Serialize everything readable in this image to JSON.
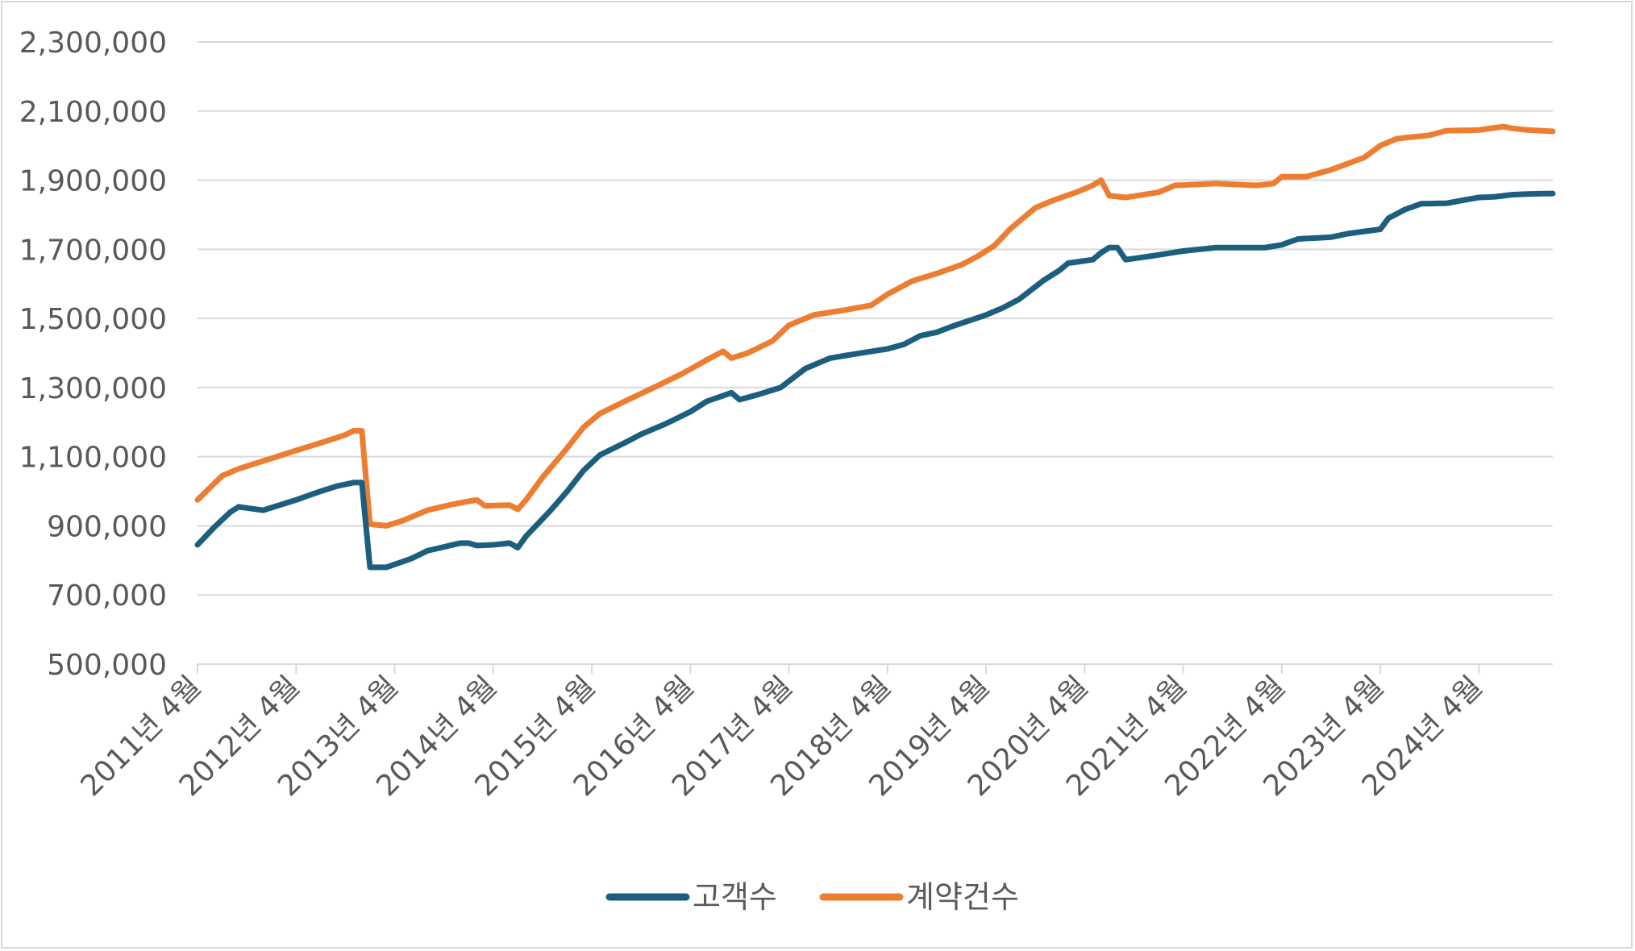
{
  "chart_data": {
    "type": "line",
    "title": "",
    "xlabel": "",
    "ylabel": "",
    "ylim": [
      500000,
      2300000
    ],
    "yticks": [
      "500,000",
      "700,000",
      "900,000",
      "1,100,000",
      "1,300,000",
      "1,500,000",
      "1,700,000",
      "1,900,000",
      "2,100,000",
      "2,300,000"
    ],
    "ytick_values": [
      500000,
      700000,
      900000,
      1100000,
      1300000,
      1500000,
      1700000,
      1900000,
      2100000,
      2300000
    ],
    "xticks": [
      "2011년 4월",
      "2012년 4월",
      "2013년 4월",
      "2014년 4월",
      "2015년 4월",
      "2016년 4월",
      "2017년 4월",
      "2018년 4월",
      "2019년 4월",
      "2020년 4월",
      "2021년 4월",
      "2022년 4월",
      "2023년 4월",
      "2024년 4월"
    ],
    "months_per_tick": 12,
    "n_points": 166,
    "grid": "horizontal",
    "legend_position": "bottom",
    "series": [
      {
        "name": "고객수",
        "color": "#1b5e7e",
        "anchors": [
          [
            0,
            845000
          ],
          [
            2,
            895000
          ],
          [
            4,
            940000
          ],
          [
            5,
            955000
          ],
          [
            8,
            945000
          ],
          [
            12,
            975000
          ],
          [
            15,
            1000000
          ],
          [
            17,
            1015000
          ],
          [
            18,
            1020000
          ],
          [
            19,
            1025000
          ],
          [
            20,
            1025000
          ],
          [
            21,
            780000
          ],
          [
            23,
            780000
          ],
          [
            26,
            805000
          ],
          [
            28,
            828000
          ],
          [
            32,
            850000
          ],
          [
            33,
            850000
          ],
          [
            34,
            843000
          ],
          [
            36,
            845000
          ],
          [
            38,
            850000
          ],
          [
            39,
            837000
          ],
          [
            40,
            870000
          ],
          [
            43,
            945000
          ],
          [
            45,
            1000000
          ],
          [
            47,
            1060000
          ],
          [
            49,
            1105000
          ],
          [
            52,
            1140000
          ],
          [
            54,
            1165000
          ],
          [
            57,
            1195000
          ],
          [
            60,
            1230000
          ],
          [
            62,
            1260000
          ],
          [
            65,
            1285000
          ],
          [
            66,
            1265000
          ],
          [
            68,
            1278000
          ],
          [
            71,
            1300000
          ],
          [
            74,
            1355000
          ],
          [
            77,
            1385000
          ],
          [
            80,
            1397000
          ],
          [
            84,
            1412000
          ],
          [
            86,
            1425000
          ],
          [
            88,
            1450000
          ],
          [
            90,
            1460000
          ],
          [
            92,
            1478000
          ],
          [
            96,
            1510000
          ],
          [
            98,
            1530000
          ],
          [
            100,
            1555000
          ],
          [
            103,
            1610000
          ],
          [
            105,
            1640000
          ],
          [
            106,
            1660000
          ],
          [
            109,
            1670000
          ],
          [
            110,
            1690000
          ],
          [
            111,
            1705000
          ],
          [
            112,
            1705000
          ],
          [
            113,
            1670000
          ],
          [
            116,
            1680000
          ],
          [
            120,
            1695000
          ],
          [
            122,
            1700000
          ],
          [
            124,
            1705000
          ],
          [
            130,
            1705000
          ],
          [
            132,
            1713000
          ],
          [
            134,
            1730000
          ],
          [
            138,
            1735000
          ],
          [
            140,
            1745000
          ],
          [
            144,
            1758000
          ],
          [
            145,
            1790000
          ],
          [
            147,
            1815000
          ],
          [
            149,
            1832000
          ],
          [
            152,
            1833000
          ],
          [
            156,
            1850000
          ],
          [
            158,
            1852000
          ],
          [
            160,
            1858000
          ],
          [
            162,
            1860000
          ],
          [
            166,
            1862000
          ]
        ]
      },
      {
        "name": "계약건수",
        "color": "#ed7d31",
        "anchors": [
          [
            0,
            975000
          ],
          [
            3,
            1045000
          ],
          [
            5,
            1065000
          ],
          [
            9,
            1095000
          ],
          [
            12,
            1118000
          ],
          [
            15,
            1140000
          ],
          [
            18,
            1163000
          ],
          [
            19,
            1175000
          ],
          [
            20,
            1175000
          ],
          [
            21,
            905000
          ],
          [
            23,
            900000
          ],
          [
            25,
            915000
          ],
          [
            28,
            945000
          ],
          [
            31,
            962000
          ],
          [
            34,
            975000
          ],
          [
            35,
            958000
          ],
          [
            38,
            960000
          ],
          [
            39,
            948000
          ],
          [
            40,
            975000
          ],
          [
            42,
            1040000
          ],
          [
            45,
            1125000
          ],
          [
            47,
            1185000
          ],
          [
            49,
            1225000
          ],
          [
            52,
            1260000
          ],
          [
            56,
            1305000
          ],
          [
            59,
            1340000
          ],
          [
            62,
            1380000
          ],
          [
            64,
            1405000
          ],
          [
            65,
            1385000
          ],
          [
            67,
            1400000
          ],
          [
            70,
            1435000
          ],
          [
            72,
            1480000
          ],
          [
            75,
            1510000
          ],
          [
            79,
            1525000
          ],
          [
            82,
            1538000
          ],
          [
            84,
            1570000
          ],
          [
            87,
            1608000
          ],
          [
            90,
            1630000
          ],
          [
            93,
            1655000
          ],
          [
            95,
            1680000
          ],
          [
            97,
            1710000
          ],
          [
            99,
            1760000
          ],
          [
            101,
            1800000
          ],
          [
            102,
            1820000
          ],
          [
            104,
            1840000
          ],
          [
            107,
            1865000
          ],
          [
            109,
            1885000
          ],
          [
            110,
            1900000
          ],
          [
            111,
            1855000
          ],
          [
            113,
            1850000
          ],
          [
            117,
            1865000
          ],
          [
            119,
            1885000
          ],
          [
            124,
            1890000
          ],
          [
            129,
            1885000
          ],
          [
            131,
            1890000
          ],
          [
            132,
            1910000
          ],
          [
            135,
            1910000
          ],
          [
            138,
            1930000
          ],
          [
            142,
            1965000
          ],
          [
            144,
            2000000
          ],
          [
            146,
            2020000
          ],
          [
            150,
            2030000
          ],
          [
            152,
            2043000
          ],
          [
            156,
            2045000
          ],
          [
            159,
            2055000
          ],
          [
            160,
            2050000
          ],
          [
            162,
            2045000
          ],
          [
            166,
            2040000
          ]
        ]
      }
    ]
  }
}
